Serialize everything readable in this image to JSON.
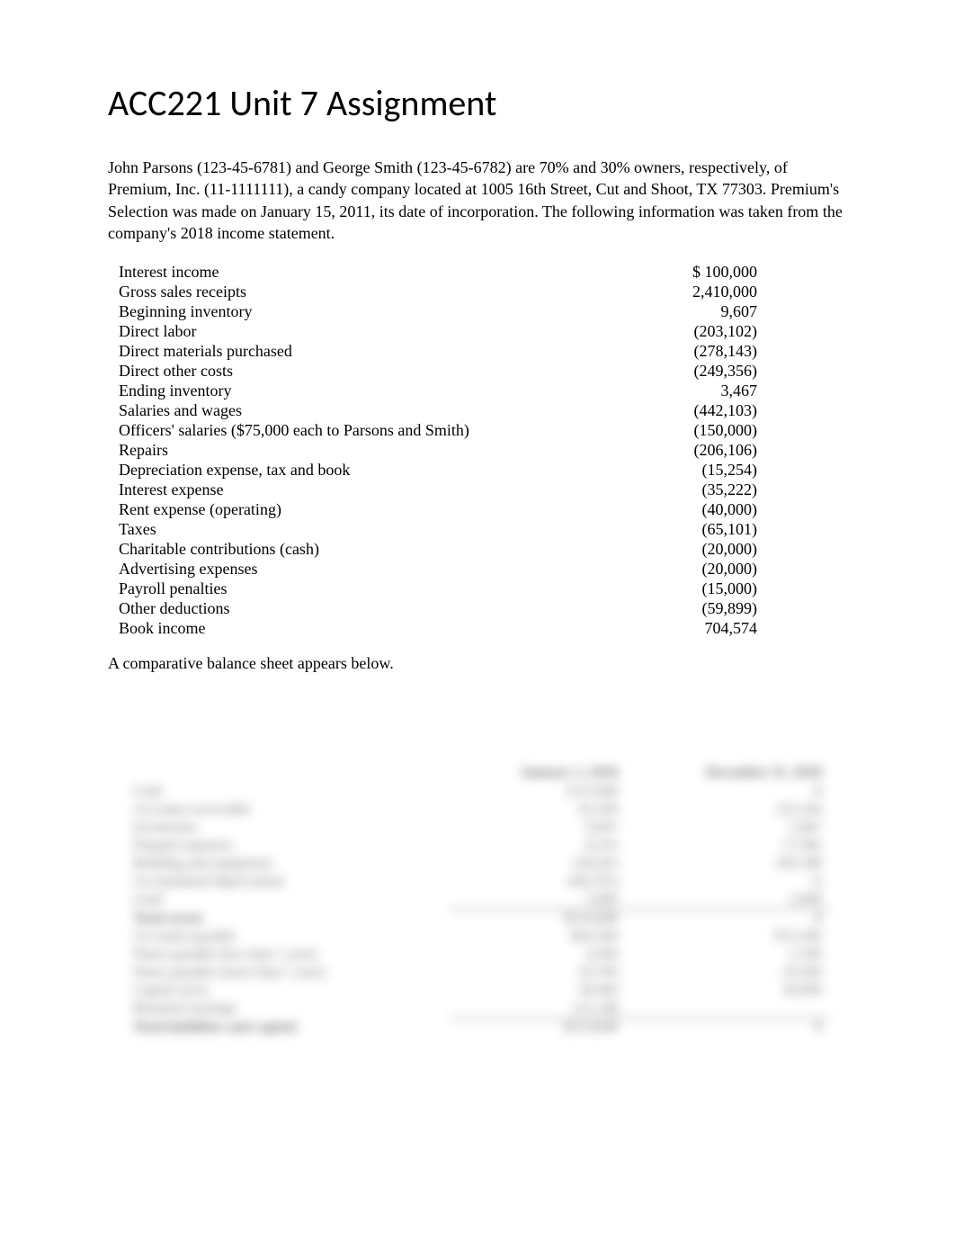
{
  "title": "ACC221 Unit 7 Assignment",
  "intro": "John Parsons (123-45-6781) and George Smith (123-45-6782) are 70% and 30% owners, respectively, of Premium, Inc. (11-1111111), a candy company located at 1005 16th Street, Cut and Shoot, TX 77303. Premium's Selection was made on January 15, 2011, its date of incorporation. The following information was taken from the company's 2018 income statement.",
  "income_statement": {
    "rows": [
      {
        "label": "Interest income",
        "value": "$ 100,000"
      },
      {
        "label": "Gross sales receipts",
        "value": "2,410,000"
      },
      {
        "label": "Beginning inventory",
        "value": "9,607"
      },
      {
        "label": "Direct labor",
        "value": "(203,102)"
      },
      {
        "label": "Direct materials purchased",
        "value": "(278,143)"
      },
      {
        "label": "Direct other costs",
        "value": "(249,356)"
      },
      {
        "label": "Ending inventory",
        "value": "3,467"
      },
      {
        "label": "Salaries and wages",
        "value": "(442,103)"
      },
      {
        "label": "Officers' salaries ($75,000 each to Parsons and Smith)",
        "value": "(150,000)"
      },
      {
        "label": "Repairs",
        "value": "(206,106)"
      },
      {
        "label": "Depreciation expense, tax and book",
        "value": "(15,254)"
      },
      {
        "label": "Interest expense",
        "value": "(35,222)"
      },
      {
        "label": "Rent expense (operating)",
        "value": "(40,000)"
      },
      {
        "label": "Taxes",
        "value": "(65,101)"
      },
      {
        "label": "Charitable contributions (cash)",
        "value": "(20,000)"
      },
      {
        "label": "Advertising expenses",
        "value": "(20,000)"
      },
      {
        "label": "Payroll penalties",
        "value": "(15,000)"
      },
      {
        "label": "Other deductions",
        "value": "(59,899)"
      },
      {
        "label": "Book income",
        "value": "704,574"
      }
    ]
  },
  "closing_text": "A comparative balance sheet appears below.",
  "balance_sheet": {
    "headers": [
      "",
      "January 1, 2018",
      "December 31, 2018"
    ],
    "rows": [
      {
        "label": "Cash",
        "col1": "$ 47,840",
        "col2": "$"
      },
      {
        "label": "Accounts receivable",
        "col1": "93,100",
        "col2": "123,104"
      },
      {
        "label": "Inventories",
        "col1": "9,607",
        "col2": "3,467"
      },
      {
        "label": "Prepaid expenses",
        "col1": "8,333",
        "col2": "17,582"
      },
      {
        "label": "Building and equipment",
        "col1": "138,203",
        "col2": "185,348"
      },
      {
        "label": "Accumulated depreciation",
        "col1": "(84,235)",
        "col2": "()"
      },
      {
        "label": "Land",
        "col1": "2,000",
        "col2": "2,000"
      },
      {
        "label": "Total assets",
        "col1": "$214,848",
        "col2": "$",
        "total": true
      },
      {
        "label": "Accounts payable",
        "col1": "$42,500",
        "col2": "$72,300"
      },
      {
        "label": "Notes payable (less than 1 year)",
        "col1": "4,500",
        "col2": "2,100"
      },
      {
        "label": "Notes payable (more than 1 year)",
        "col1": "26,700",
        "col2": "24,300"
      },
      {
        "label": "Capital stock",
        "col1": "30,000",
        "col2": "30,000"
      },
      {
        "label": "Retained earnings",
        "col1": "111,148",
        "col2": ""
      },
      {
        "label": "Total liabilities and capital",
        "col1": "$214,848",
        "col2": "$",
        "total": true
      }
    ]
  },
  "colors": {
    "background": "#ffffff",
    "text": "#000000",
    "blur_text": "#333333"
  },
  "typography": {
    "title_font": "Calibri",
    "title_size": 40,
    "body_font": "Times New Roman",
    "body_size": 18,
    "balance_sheet_size": 16
  }
}
